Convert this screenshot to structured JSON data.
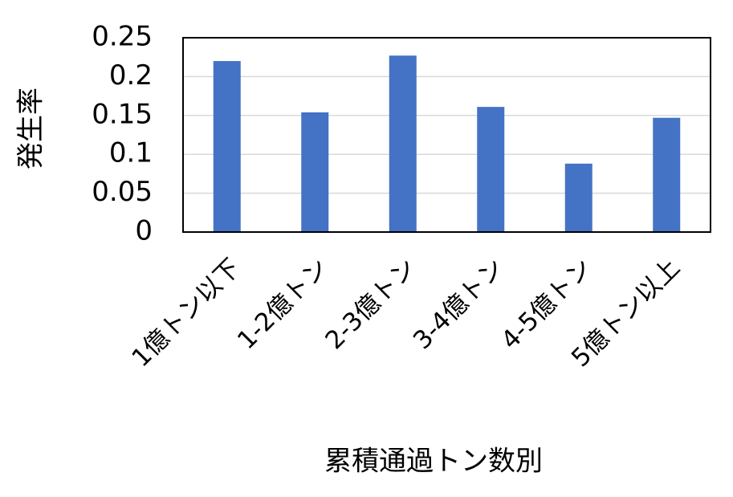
{
  "chart_data": {
    "type": "bar",
    "x_label": "累積通過トン数別",
    "y_label": "発生率",
    "categories": [
      "1億トン以下",
      "1-2億トン",
      "2-3億トン",
      "3-4億トン",
      "4-5億トン",
      "5億トン以上"
    ],
    "values": [
      0.22,
      0.154,
      0.227,
      0.161,
      0.088,
      0.147
    ],
    "color": "#4472c4",
    "ylim": [
      0,
      0.25
    ],
    "yticks": [
      0,
      0.05,
      0.1,
      0.15,
      0.2,
      0.25
    ],
    "grid": true
  }
}
